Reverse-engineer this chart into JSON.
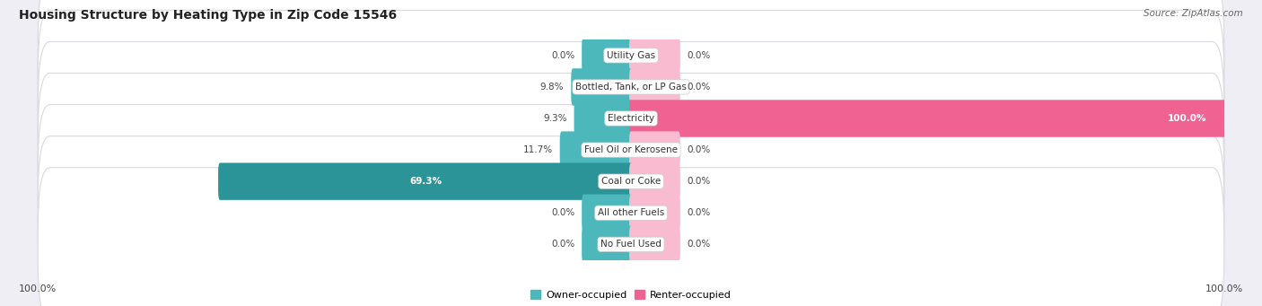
{
  "title": "Housing Structure by Heating Type in Zip Code 15546",
  "source": "Source: ZipAtlas.com",
  "categories": [
    "Utility Gas",
    "Bottled, Tank, or LP Gas",
    "Electricity",
    "Fuel Oil or Kerosene",
    "Coal or Coke",
    "All other Fuels",
    "No Fuel Used"
  ],
  "owner_values": [
    0.0,
    9.8,
    9.3,
    11.7,
    69.3,
    0.0,
    0.0
  ],
  "renter_values": [
    0.0,
    0.0,
    100.0,
    0.0,
    0.0,
    0.0,
    0.0
  ],
  "owner_color": "#4db8bc",
  "owner_color_dark": "#2a9499",
  "renter_color": "#f06292",
  "renter_color_light": "#f8bbd0",
  "bg_color": "#eeeef4",
  "row_bg_color": "#f5f5f8",
  "row_border_color": "#d8d8e0",
  "title_fontsize": 10,
  "source_fontsize": 7.5,
  "label_fontsize": 7.5,
  "cat_fontsize": 7.5,
  "axis_label_fontsize": 8,
  "max_value": 100.0,
  "min_bar_width": 8.0,
  "x_left_label": "100.0%",
  "x_right_label": "100.0%"
}
